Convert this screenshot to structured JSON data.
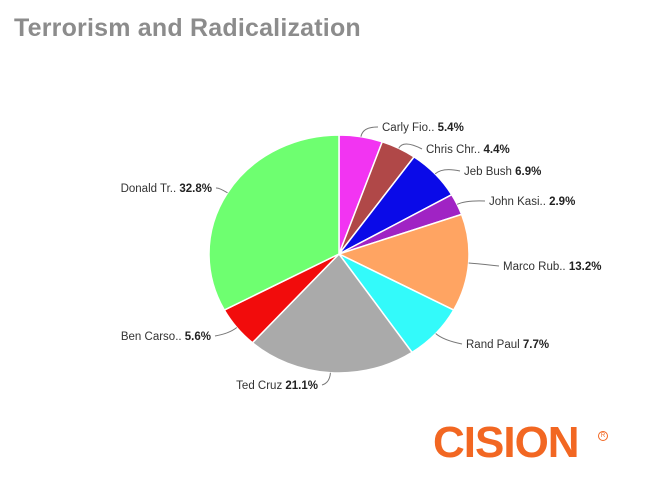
{
  "title": "Terrorism and Radicalization",
  "brand": {
    "name": "CISION",
    "color": "#F26722"
  },
  "chart_data": {
    "type": "pie",
    "title": "Terrorism and Radicalization",
    "start_angle_deg": 0,
    "slices": [
      {
        "label": "Carly Fio..",
        "pct_label": "5.4%",
        "value": 5.4,
        "color": "#F234F2"
      },
      {
        "label": "Chris Chr..",
        "pct_label": "4.4%",
        "value": 4.4,
        "color": "#B04848"
      },
      {
        "label": "Jeb Bush",
        "pct_label": "6.9%",
        "value": 6.9,
        "color": "#0A0AE8"
      },
      {
        "label": "John Kasi..",
        "pct_label": "2.9%",
        "value": 2.9,
        "color": "#A023C4"
      },
      {
        "label": "Marco Rub..",
        "pct_label": "13.2%",
        "value": 13.2,
        "color": "#FFA462"
      },
      {
        "label": "Rand Paul",
        "pct_label": "7.7%",
        "value": 7.7,
        "color": "#33FAFA"
      },
      {
        "label": "Ted Cruz",
        "pct_label": "21.1%",
        "value": 21.1,
        "color": "#AAAAAA"
      },
      {
        "label": "Ben Carso..",
        "pct_label": "5.6%",
        "value": 5.6,
        "color": "#F20C0C"
      },
      {
        "label": "Donald Tr..",
        "pct_label": "32.8%",
        "value": 32.8,
        "color": "#6EFF70"
      }
    ]
  }
}
